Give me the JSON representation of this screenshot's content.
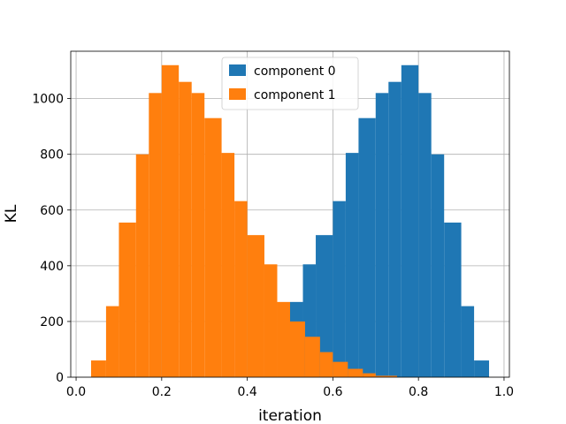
{
  "chart_data": {
    "type": "bar",
    "title": "",
    "xlabel": "iteration",
    "ylabel": "KL",
    "xlim": [
      -0.0125,
      1.0125
    ],
    "ylim": [
      0,
      1170
    ],
    "grid": true,
    "legend_position": "top-center",
    "xticks": [
      0.0,
      0.2,
      0.4,
      0.6,
      0.8,
      1.0
    ],
    "xtick_labels": [
      "0.0",
      "0.2",
      "0.4",
      "0.6",
      "0.8",
      "1.0"
    ],
    "yticks": [
      0,
      200,
      400,
      600,
      800,
      1000
    ],
    "ytick_labels": [
      "0",
      "200",
      "400",
      "600",
      "800",
      "1000"
    ],
    "series": [
      {
        "name": "component 0",
        "color": "#1f77b4",
        "bins": [
          {
            "x0": 0.5,
            "x1": 0.53,
            "value": 270
          },
          {
            "x0": 0.53,
            "x1": 0.56,
            "value": 405
          },
          {
            "x0": 0.56,
            "x1": 0.6,
            "value": 510
          },
          {
            "x0": 0.6,
            "x1": 0.63,
            "value": 632
          },
          {
            "x0": 0.63,
            "x1": 0.66,
            "value": 805
          },
          {
            "x0": 0.66,
            "x1": 0.7,
            "value": 930
          },
          {
            "x0": 0.7,
            "x1": 0.73,
            "value": 1020
          },
          {
            "x0": 0.73,
            "x1": 0.76,
            "value": 1060
          },
          {
            "x0": 0.76,
            "x1": 0.8,
            "value": 1120
          },
          {
            "x0": 0.8,
            "x1": 0.83,
            "value": 1020
          },
          {
            "x0": 0.83,
            "x1": 0.86,
            "value": 800
          },
          {
            "x0": 0.86,
            "x1": 0.9,
            "value": 555
          },
          {
            "x0": 0.9,
            "x1": 0.93,
            "value": 255
          },
          {
            "x0": 0.93,
            "x1": 0.965,
            "value": 60
          }
        ]
      },
      {
        "name": "component 1",
        "color": "#ff7f0e",
        "bins": [
          {
            "x0": 0.035,
            "x1": 0.07,
            "value": 60
          },
          {
            "x0": 0.07,
            "x1": 0.1,
            "value": 255
          },
          {
            "x0": 0.1,
            "x1": 0.14,
            "value": 555
          },
          {
            "x0": 0.14,
            "x1": 0.17,
            "value": 800
          },
          {
            "x0": 0.17,
            "x1": 0.2,
            "value": 1020
          },
          {
            "x0": 0.2,
            "x1": 0.24,
            "value": 1120
          },
          {
            "x0": 0.24,
            "x1": 0.27,
            "value": 1060
          },
          {
            "x0": 0.27,
            "x1": 0.3,
            "value": 1020
          },
          {
            "x0": 0.3,
            "x1": 0.34,
            "value": 930
          },
          {
            "x0": 0.34,
            "x1": 0.37,
            "value": 805
          },
          {
            "x0": 0.37,
            "x1": 0.4,
            "value": 632
          },
          {
            "x0": 0.4,
            "x1": 0.44,
            "value": 510
          },
          {
            "x0": 0.44,
            "x1": 0.47,
            "value": 405
          },
          {
            "x0": 0.47,
            "x1": 0.5,
            "value": 270
          },
          {
            "x0": 0.5,
            "x1": 0.535,
            "value": 200
          },
          {
            "x0": 0.535,
            "x1": 0.57,
            "value": 145
          },
          {
            "x0": 0.57,
            "x1": 0.6,
            "value": 90
          },
          {
            "x0": 0.6,
            "x1": 0.635,
            "value": 55
          },
          {
            "x0": 0.635,
            "x1": 0.67,
            "value": 30
          },
          {
            "x0": 0.67,
            "x1": 0.7,
            "value": 14
          },
          {
            "x0": 0.7,
            "x1": 0.75,
            "value": 5
          }
        ]
      }
    ]
  }
}
